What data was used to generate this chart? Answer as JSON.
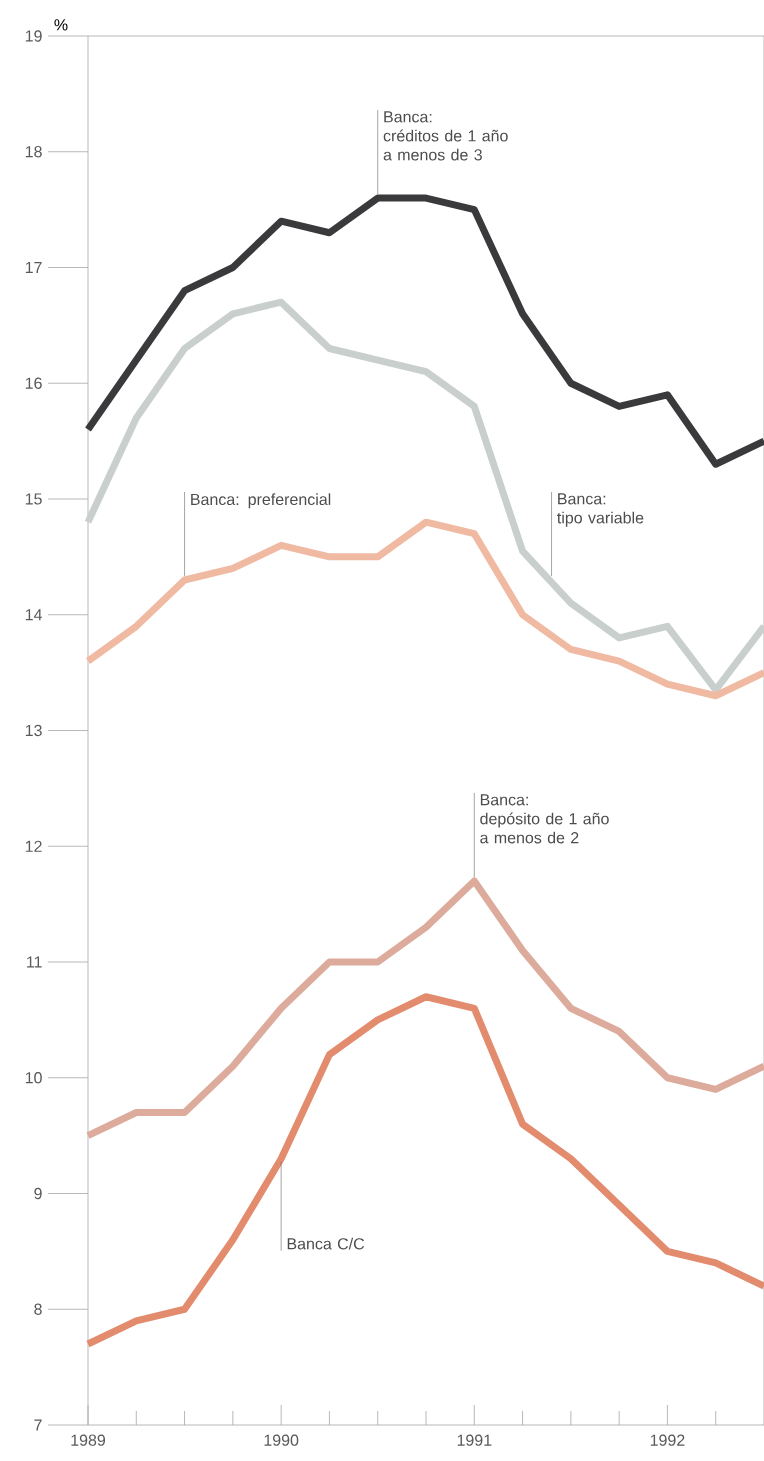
{
  "chart_data": {
    "type": "line",
    "ylabel": "%",
    "x": [
      1989,
      1989.25,
      1989.5,
      1989.75,
      1990,
      1990.25,
      1990.5,
      1990.75,
      1991,
      1991.25,
      1991.5,
      1991.75,
      1992,
      1992.25,
      1992.5
    ],
    "series": [
      {
        "color": "#3a3a3c",
        "values": [
          15.6,
          16.2,
          16.8,
          17.0,
          17.4,
          17.3,
          17.6,
          17.6,
          17.5,
          16.6,
          16.0,
          15.8,
          15.9,
          15.3,
          15.5
        ]
      },
      {
        "color": "#c8cfcc",
        "values": [
          14.8,
          15.7,
          16.3,
          16.6,
          16.7,
          16.3,
          16.2,
          16.1,
          15.8,
          14.55,
          14.1,
          13.8,
          13.9,
          13.35,
          13.9
        ]
      },
      {
        "color": "#f0b9a2",
        "values": [
          13.6,
          13.9,
          14.3,
          14.4,
          14.6,
          14.5,
          14.5,
          14.8,
          14.7,
          14.0,
          13.7,
          13.6,
          13.4,
          13.3,
          13.5
        ]
      },
      {
        "color": "#dcab9c",
        "values": [
          9.5,
          9.7,
          9.7,
          10.1,
          10.6,
          11.0,
          11.0,
          11.3,
          11.7,
          11.1,
          10.6,
          10.4,
          10.0,
          9.9,
          10.1
        ]
      },
      {
        "color": "#e38b6d",
        "values": [
          7.7,
          7.9,
          8.0,
          8.6,
          9.3,
          10.2,
          10.5,
          10.7,
          10.6,
          9.6,
          9.3,
          8.9,
          8.5,
          8.4,
          8.2
        ]
      }
    ],
    "annotations": [
      {
        "text": "Banca:\ncréditos de 1 año\na menos de 3",
        "x": 1990.5,
        "y": 17.6
      },
      {
        "text": "Banca: preferencial",
        "x": 1989.5,
        "y": 14.3
      },
      {
        "text": "Banca:\ntipo variable",
        "x": 1991.4,
        "y": 14.3
      },
      {
        "text": "Banca:\ndepósito de 1 año\na menos de 2",
        "x": 1991,
        "y": 11.7
      },
      {
        "text": "Banca C/C",
        "x": 1990,
        "y": 9.3
      }
    ],
    "xlim": [
      1989,
      1992.5
    ],
    "xticks": [
      1989,
      {
        "value": 1989.25,
        "label": null
      },
      {
        "value": 1989.5,
        "label": null
      },
      {
        "value": 1989.75,
        "label": null
      },
      1990,
      {
        "value": 1990.25,
        "label": null
      },
      {
        "value": 1990.5,
        "label": null
      },
      {
        "value": 1990.75,
        "label": null
      },
      1991,
      {
        "value": 1991.25,
        "label": null
      },
      {
        "value": 1991.5,
        "label": null
      },
      {
        "value": 1991.75,
        "label": null
      },
      1992,
      {
        "value": 1992.25,
        "label": null
      }
    ],
    "ylim": [
      7,
      19
    ],
    "yticks": [
      7,
      8,
      9,
      10,
      11,
      12,
      13,
      14,
      15,
      16,
      17,
      18,
      19
    ],
    "line_style": "solid",
    "marker": "none",
    "grid": false
  }
}
